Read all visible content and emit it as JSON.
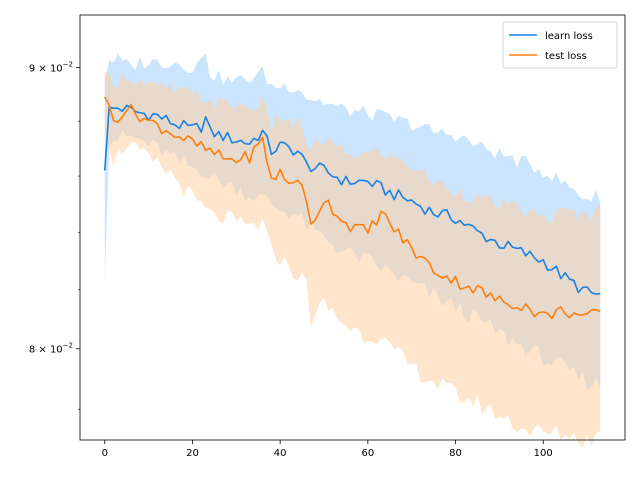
{
  "chart_data": {
    "type": "line",
    "title": "",
    "xlabel": "",
    "ylabel": "",
    "yscale": "log",
    "xlim": [
      -5.65,
      118.65
    ],
    "ylim": [
      0.077,
      0.092
    ],
    "xticks": [
      0,
      20,
      40,
      60,
      80,
      100
    ],
    "xtick_labels": [
      "0",
      "20",
      "40",
      "60",
      "80",
      "100"
    ],
    "yticks": [
      0.08,
      0.09
    ],
    "ytick_labels": [
      {
        "mantissa": "8",
        "base": "10",
        "exp": "−2"
      },
      {
        "mantissa": "9",
        "base": "10",
        "exp": "−2"
      }
    ],
    "grid": false,
    "legend_position": "upper-right",
    "series": [
      {
        "name": "learn loss",
        "color": "#1f77b4",
        "line_color": "#1a80e6",
        "band_color": "#a9d4ff",
        "x_anchors": [
          0,
          1,
          3,
          6,
          8,
          12,
          16,
          20,
          22,
          23,
          24,
          28,
          30,
          33,
          36,
          38,
          40,
          44,
          46,
          50,
          55,
          60,
          65,
          70,
          75,
          80,
          85,
          90,
          95,
          100,
          105,
          110,
          113
        ],
        "mean_anchors": [
          0.0862,
          0.0884,
          0.0885,
          0.0884,
          0.0883,
          0.0882,
          0.0879,
          0.0877,
          0.0878,
          0.0881,
          0.0876,
          0.0874,
          0.0873,
          0.0872,
          0.0876,
          0.0869,
          0.0871,
          0.0869,
          0.0864,
          0.0862,
          0.0858,
          0.0858,
          0.0854,
          0.0851,
          0.0847,
          0.0845,
          0.084,
          0.0836,
          0.0833,
          0.083,
          0.0824,
          0.0819,
          0.0818
        ],
        "lower_anchors": [
          0.0822,
          0.0873,
          0.0874,
          0.0874,
          0.0873,
          0.087,
          0.0866,
          0.0863,
          0.0862,
          0.0862,
          0.086,
          0.0857,
          0.0856,
          0.0853,
          0.0852,
          0.085,
          0.0848,
          0.0846,
          0.0842,
          0.0838,
          0.0833,
          0.083,
          0.0826,
          0.0822,
          0.0818,
          0.0814,
          0.081,
          0.0805,
          0.0801,
          0.0797,
          0.0793,
          0.0789,
          0.0788
        ],
        "upper_anchors": [
          0.0895,
          0.0903,
          0.0903,
          0.09,
          0.0902,
          0.0902,
          0.0902,
          0.09,
          0.0902,
          0.0907,
          0.0898,
          0.0895,
          0.0895,
          0.0896,
          0.0898,
          0.0893,
          0.0893,
          0.0893,
          0.0889,
          0.0887,
          0.0884,
          0.0883,
          0.0881,
          0.0879,
          0.0876,
          0.0875,
          0.0871,
          0.0868,
          0.0865,
          0.0862,
          0.0857,
          0.0852,
          0.0853
        ]
      },
      {
        "name": "test loss",
        "color": "#ff7f0e",
        "line_color": "#ff7f0e",
        "band_color": "#ffcfa0",
        "x_anchors": [
          0,
          2,
          5,
          10,
          15,
          20,
          25,
          28,
          30,
          33,
          36,
          38,
          40,
          42,
          44,
          46,
          47,
          50,
          55,
          60,
          63,
          65,
          70,
          75,
          80,
          85,
          90,
          95,
          100,
          105,
          110,
          113
        ],
        "mean_anchors": [
          0.0889,
          0.088,
          0.0885,
          0.088,
          0.0876,
          0.0872,
          0.0868,
          0.0866,
          0.0866,
          0.0867,
          0.0873,
          0.0859,
          0.0861,
          0.0857,
          0.086,
          0.085,
          0.0842,
          0.0852,
          0.0843,
          0.084,
          0.0847,
          0.0843,
          0.0834,
          0.0827,
          0.0823,
          0.082,
          0.0816,
          0.0815,
          0.0811,
          0.0813,
          0.081,
          0.0813
        ],
        "lower_anchors": [
          0.0878,
          0.0866,
          0.0872,
          0.0866,
          0.0861,
          0.0852,
          0.0845,
          0.0845,
          0.0843,
          0.0842,
          0.0843,
          0.0833,
          0.0831,
          0.0828,
          0.0825,
          0.0822,
          0.081,
          0.0815,
          0.0808,
          0.0804,
          0.0805,
          0.08,
          0.0794,
          0.0789,
          0.0785,
          0.0782,
          0.0778,
          0.0774,
          0.0772,
          0.0772,
          0.077,
          0.0772
        ],
        "upper_anchors": [
          0.0898,
          0.0895,
          0.0897,
          0.0893,
          0.0892,
          0.089,
          0.0887,
          0.0886,
          0.0886,
          0.0885,
          0.0887,
          0.0878,
          0.0882,
          0.088,
          0.0879,
          0.0873,
          0.087,
          0.0873,
          0.0868,
          0.0868,
          0.0869,
          0.0867,
          0.0864,
          0.0858,
          0.0855,
          0.0852,
          0.085,
          0.0848,
          0.0845,
          0.0847,
          0.0846,
          0.0848
        ]
      }
    ]
  }
}
